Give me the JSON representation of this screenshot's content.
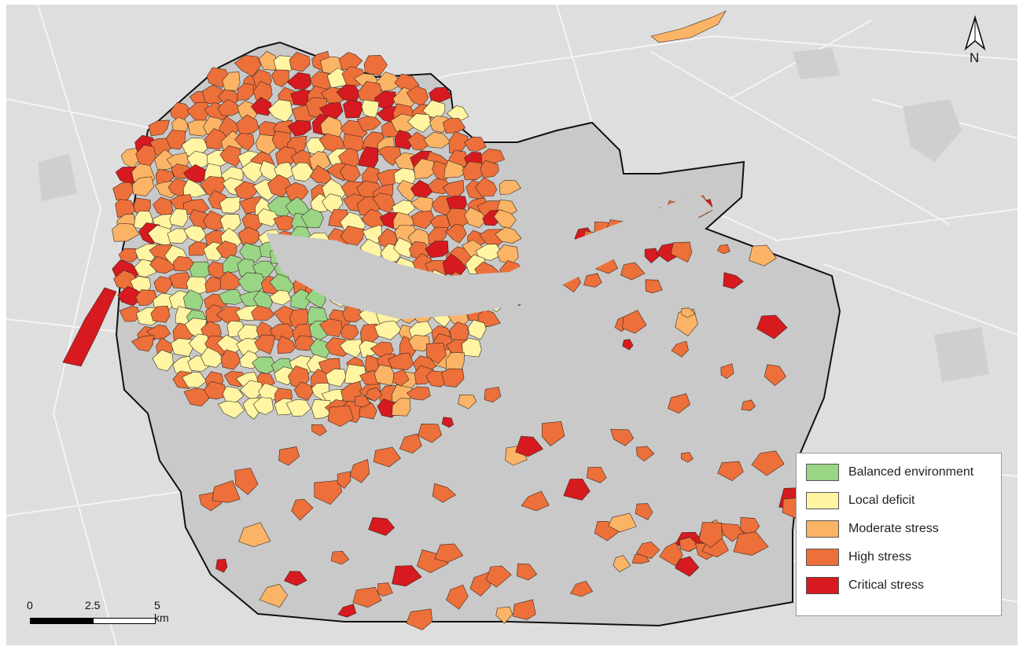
{
  "colors": {
    "background": "#dedede",
    "streets": "#ffffff",
    "unclassified_area": "#c9c9c9",
    "boundary": "#111111",
    "balanced_environment": "#9ad586",
    "local_deficit": "#fff5a3",
    "moderate_stress": "#fbb466",
    "high_stress": "#ed6f3a",
    "critical_stress": "#d61a1f"
  },
  "legend": {
    "items": [
      {
        "key": "balanced_environment",
        "label": "Balanced environment",
        "color": "#9ad586"
      },
      {
        "key": "local_deficit",
        "label": "Local deficit",
        "color": "#fff5a3"
      },
      {
        "key": "moderate_stress",
        "label": "Moderate stress",
        "color": "#fbb466"
      },
      {
        "key": "high_stress",
        "label": "High stress",
        "color": "#ed6f3a"
      },
      {
        "key": "critical_stress",
        "label": "Critical stress",
        "color": "#d61a1f"
      }
    ]
  },
  "north_arrow": {
    "label": "N",
    "icon": "north-arrow-icon"
  },
  "scale_bar": {
    "ticks": [
      "0",
      "2.5",
      "5 km"
    ]
  }
}
